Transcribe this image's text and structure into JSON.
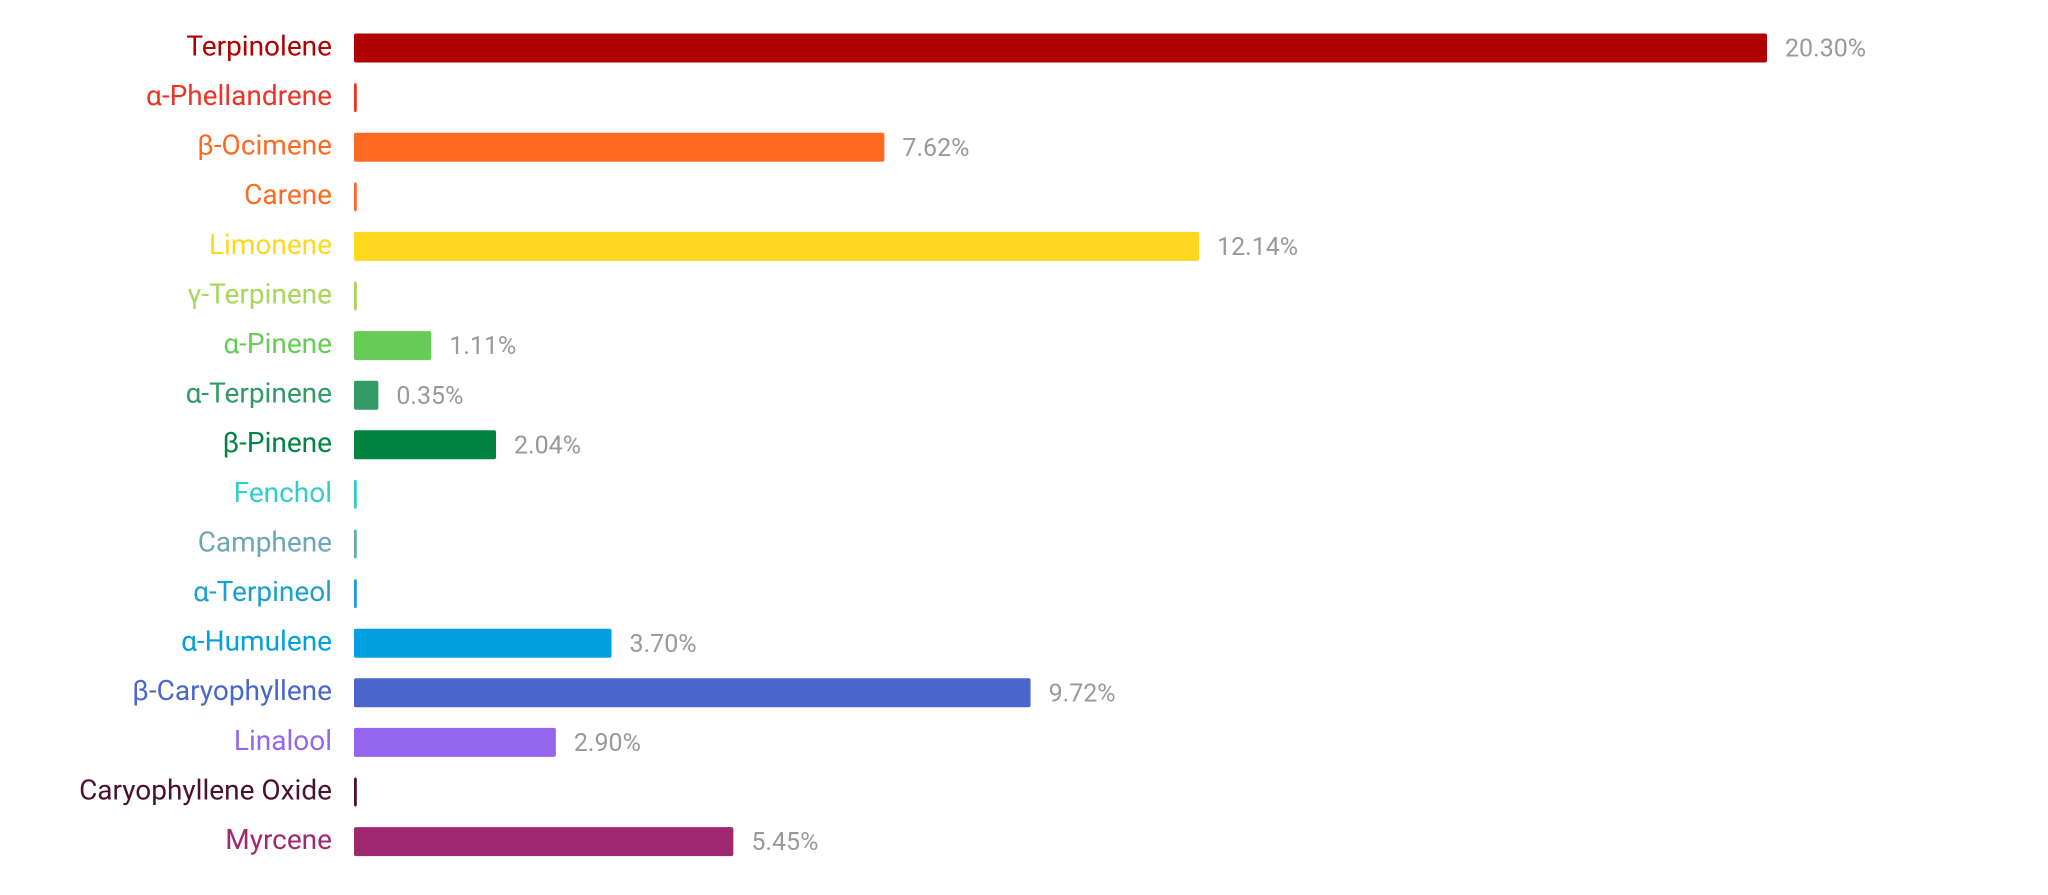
{
  "chart_data": {
    "type": "hbar",
    "categories": [
      "Terpinolene",
      "α-Phellandrene",
      "β-Ocimene",
      "Carene",
      "Limonene",
      "γ-Terpinene",
      "α-Pinene",
      "α-Terpinene",
      "β-Pinene",
      "Fenchol",
      "Camphene",
      "α-Terpineol",
      "α-Humulene",
      "β-Caryophyllene",
      "Linalool",
      "Caryophyllene Oxide",
      "Myrcene"
    ],
    "values": [
      20.3,
      0.04,
      7.62,
      0.04,
      12.14,
      0.04,
      1.11,
      0.35,
      2.04,
      0.04,
      0.04,
      0.04,
      3.7,
      9.72,
      2.9,
      0.04,
      5.45
    ],
    "value_labels": [
      "20.30%",
      null,
      "7.62%",
      null,
      "12.14%",
      null,
      "1.11%",
      "0.35%",
      "2.04%",
      null,
      null,
      null,
      "3.70%",
      "9.72%",
      "2.90%",
      null,
      "5.45%"
    ],
    "colors": [
      "#b00000",
      "#ee3322",
      "#ff6a22",
      "#ff6a22",
      "#ffd81e",
      "#a8d65a",
      "#66cc55",
      "#339966",
      "#00843f",
      "#33cccc",
      "#6aa8b8",
      "#1aa0d0",
      "#00a0e0",
      "#4a66cc",
      "#9466ee",
      "#4a1030",
      "#a02870"
    ]
  }
}
